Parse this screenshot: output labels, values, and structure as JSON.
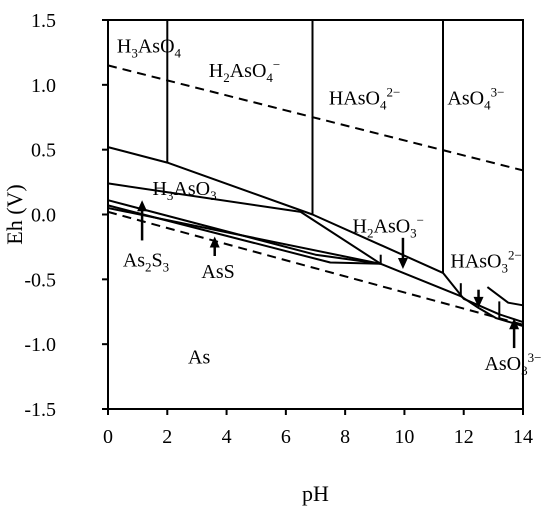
{
  "chart_data": {
    "type": "line",
    "title": "",
    "xlabel": "pH",
    "ylabel": "Eh (V)",
    "xlim": [
      0,
      14
    ],
    "ylim": [
      -1.5,
      1.5
    ],
    "xticks": [
      "0",
      "2",
      "4",
      "6",
      "8",
      "10",
      "12",
      "14"
    ],
    "yticks": [
      "1.5",
      "1.0",
      "0.5",
      "0.0",
      "-0.5",
      "-1.0",
      "-1.5"
    ],
    "grid": false,
    "legend": "none",
    "water_stability_lines": [
      {
        "style": "dashed",
        "points": [
          [
            0,
            1.15
          ],
          [
            14,
            0.34
          ]
        ]
      },
      {
        "style": "dashed",
        "points": [
          [
            0,
            0.02
          ],
          [
            14,
            -0.85
          ]
        ]
      }
    ],
    "boundaries": [
      {
        "points": [
          [
            0,
            0.52
          ],
          [
            2,
            0.4
          ],
          [
            6.9,
            0.0
          ],
          [
            11.3,
            -0.45
          ],
          [
            12,
            -0.65
          ],
          [
            13.2,
            -0.77
          ],
          [
            14,
            -0.83
          ]
        ]
      },
      {
        "points": [
          [
            2,
            1.5
          ],
          [
            2,
            0.4
          ]
        ]
      },
      {
        "points": [
          [
            6.9,
            1.5
          ],
          [
            6.9,
            0.0
          ]
        ]
      },
      {
        "points": [
          [
            11.3,
            1.5
          ],
          [
            11.3,
            -0.45
          ]
        ]
      },
      {
        "points": [
          [
            14,
            1.5
          ],
          [
            14,
            -0.7
          ]
        ]
      },
      {
        "points": [
          [
            0,
            0.24
          ],
          [
            6.5,
            0.02
          ],
          [
            9.2,
            -0.38
          ]
        ]
      },
      {
        "points": [
          [
            0,
            0.11
          ],
          [
            7,
            -0.31
          ],
          [
            9.2,
            -0.38
          ]
        ]
      },
      {
        "points": [
          [
            0,
            0.07
          ],
          [
            7.5,
            -0.37
          ],
          [
            9.2,
            -0.38
          ]
        ]
      },
      {
        "points": [
          [
            0,
            0.05
          ],
          [
            9.2,
            -0.38
          ],
          [
            11.9,
            -0.63
          ],
          [
            12.5,
            -0.72
          ],
          [
            13.1,
            -0.8
          ],
          [
            14,
            -0.86
          ]
        ]
      },
      {
        "points": [
          [
            12.8,
            -0.56
          ],
          [
            13.5,
            -0.68
          ],
          [
            14,
            -0.7
          ]
        ]
      },
      {
        "points": [
          [
            9.2,
            -0.31
          ],
          [
            9.2,
            -0.38
          ]
        ]
      },
      {
        "points": [
          [
            11.9,
            -0.53
          ],
          [
            11.9,
            -0.63
          ]
        ]
      },
      {
        "points": [
          [
            13.2,
            -0.67
          ],
          [
            13.2,
            -0.8
          ]
        ]
      }
    ],
    "arrows": [
      {
        "from": [
          1.15,
          -0.2
        ],
        "to": [
          1.15,
          0.11
        ]
      },
      {
        "from": [
          3.6,
          -0.32
        ],
        "to": [
          3.6,
          -0.17
        ]
      },
      {
        "from": [
          9.95,
          -0.18
        ],
        "to": [
          9.95,
          -0.42
        ]
      },
      {
        "from": [
          12.5,
          -0.58
        ],
        "to": [
          12.5,
          -0.72
        ]
      },
      {
        "from": [
          13.7,
          -1.03
        ],
        "to": [
          13.7,
          -0.8
        ]
      }
    ]
  },
  "species_labels": [
    {
      "id": "h3aso4",
      "x": 0.3,
      "y": 1.25,
      "main": "H",
      "parts": [
        [
          "3",
          "sub"
        ],
        [
          "AsO",
          ""
        ],
        [
          "4",
          "sub"
        ]
      ]
    },
    {
      "id": "h2aso4",
      "x": 3.4,
      "y": 1.06,
      "main": "H",
      "parts": [
        [
          "2",
          "sub"
        ],
        [
          "AsO",
          ""
        ],
        [
          "4",
          "sub"
        ],
        [
          "−",
          "sup"
        ]
      ]
    },
    {
      "id": "haso4",
      "x": 7.45,
      "y": 0.85,
      "main": "HAsO",
      "parts": [
        [
          "4",
          "sub"
        ],
        [
          "2−",
          "sup"
        ]
      ]
    },
    {
      "id": "aso4",
      "x": 11.45,
      "y": 0.85,
      "main": "AsO",
      "parts": [
        [
          "4",
          "sub"
        ],
        [
          "3−",
          "sup"
        ]
      ]
    },
    {
      "id": "h3aso3",
      "x": 1.5,
      "y": 0.15,
      "main": "H",
      "parts": [
        [
          "3",
          "sub"
        ],
        [
          "AsO",
          ""
        ],
        [
          "3",
          "sub"
        ]
      ]
    },
    {
      "id": "h2aso3",
      "x": 8.25,
      "y": -0.14,
      "main": "H",
      "parts": [
        [
          "2",
          "sub"
        ],
        [
          "AsO",
          ""
        ],
        [
          "3",
          "sub"
        ],
        [
          "−",
          "sup"
        ]
      ]
    },
    {
      "id": "haso3",
      "x": 11.55,
      "y": -0.41,
      "main": "HAsO",
      "parts": [
        [
          "3",
          "sub"
        ],
        [
          "2−",
          "sup"
        ]
      ]
    },
    {
      "id": "as2s3",
      "x": 0.5,
      "y": -0.4,
      "main": "As",
      "parts": [
        [
          "2",
          "sub"
        ],
        [
          "S",
          ""
        ],
        [
          "3",
          "sub"
        ]
      ]
    },
    {
      "id": "ass",
      "x": 3.15,
      "y": -0.49,
      "main": "AsS",
      "parts": []
    },
    {
      "id": "as",
      "x": 2.7,
      "y": -1.15,
      "main": "As",
      "parts": []
    },
    {
      "id": "aso3",
      "x": 12.7,
      "y": -1.2,
      "main": "AsO",
      "parts": [
        [
          "3",
          "sub"
        ],
        [
          "3−",
          "sup"
        ]
      ]
    }
  ]
}
